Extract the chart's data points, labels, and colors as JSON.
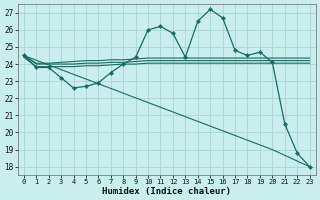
{
  "xlabel": "Humidex (Indice chaleur)",
  "bg_color": "#c8eeed",
  "grid_color": "#b0d8d5",
  "line_color": "#1a6b62",
  "xlim": [
    -0.5,
    23.5
  ],
  "ylim": [
    17.5,
    27.5
  ],
  "yticks": [
    18,
    19,
    20,
    21,
    22,
    23,
    24,
    25,
    26,
    27
  ],
  "xticks": [
    0,
    1,
    2,
    3,
    4,
    5,
    6,
    7,
    8,
    9,
    10,
    11,
    12,
    13,
    14,
    15,
    16,
    17,
    18,
    19,
    20,
    21,
    22,
    23
  ],
  "series1_x": [
    0,
    1,
    2,
    3,
    4,
    5,
    6,
    7,
    8,
    9,
    10,
    11,
    12,
    13,
    14,
    15,
    16,
    17,
    18,
    19,
    20,
    21,
    22,
    23
  ],
  "series1_y": [
    24.5,
    23.8,
    23.8,
    23.2,
    22.6,
    22.7,
    22.9,
    23.5,
    24.0,
    24.4,
    26.0,
    26.2,
    25.8,
    24.4,
    26.5,
    27.2,
    26.7,
    24.8,
    24.5,
    24.7,
    24.1,
    20.5,
    18.8,
    18.0
  ],
  "series2_x": [
    0,
    1,
    2,
    3,
    4,
    5,
    6,
    7,
    8,
    9,
    10,
    11,
    12,
    13,
    14,
    15,
    16,
    17,
    18,
    19,
    20,
    21,
    22,
    23
  ],
  "series2_y": [
    24.4,
    23.85,
    23.85,
    23.85,
    23.85,
    23.9,
    23.9,
    23.95,
    24.0,
    24.0,
    24.05,
    24.05,
    24.05,
    24.05,
    24.05,
    24.05,
    24.05,
    24.05,
    24.05,
    24.05,
    24.05,
    24.05,
    24.05,
    24.05
  ],
  "series3_x": [
    0,
    1,
    2,
    3,
    4,
    5,
    6,
    7,
    8,
    9,
    10,
    11,
    12,
    13,
    14,
    15,
    16,
    17,
    18,
    19,
    20,
    21,
    22,
    23
  ],
  "series3_y": [
    24.5,
    24.0,
    24.0,
    24.0,
    24.0,
    24.05,
    24.05,
    24.1,
    24.1,
    24.15,
    24.2,
    24.2,
    24.2,
    24.2,
    24.2,
    24.2,
    24.2,
    24.2,
    24.2,
    24.2,
    24.2,
    24.2,
    24.2,
    24.2
  ],
  "series4_x": [
    0,
    1,
    2,
    3,
    4,
    5,
    6,
    7,
    8,
    9,
    10,
    11,
    12,
    13,
    14,
    15,
    16,
    17,
    18,
    19,
    20,
    21,
    22,
    23
  ],
  "series4_y": [
    24.5,
    24.05,
    24.05,
    24.1,
    24.15,
    24.2,
    24.2,
    24.25,
    24.25,
    24.3,
    24.35,
    24.35,
    24.35,
    24.35,
    24.35,
    24.35,
    24.35,
    24.35,
    24.35,
    24.35,
    24.35,
    24.35,
    24.35,
    24.35
  ],
  "series5_x": [
    0,
    20,
    23
  ],
  "series5_y": [
    24.5,
    19.0,
    18.0
  ]
}
